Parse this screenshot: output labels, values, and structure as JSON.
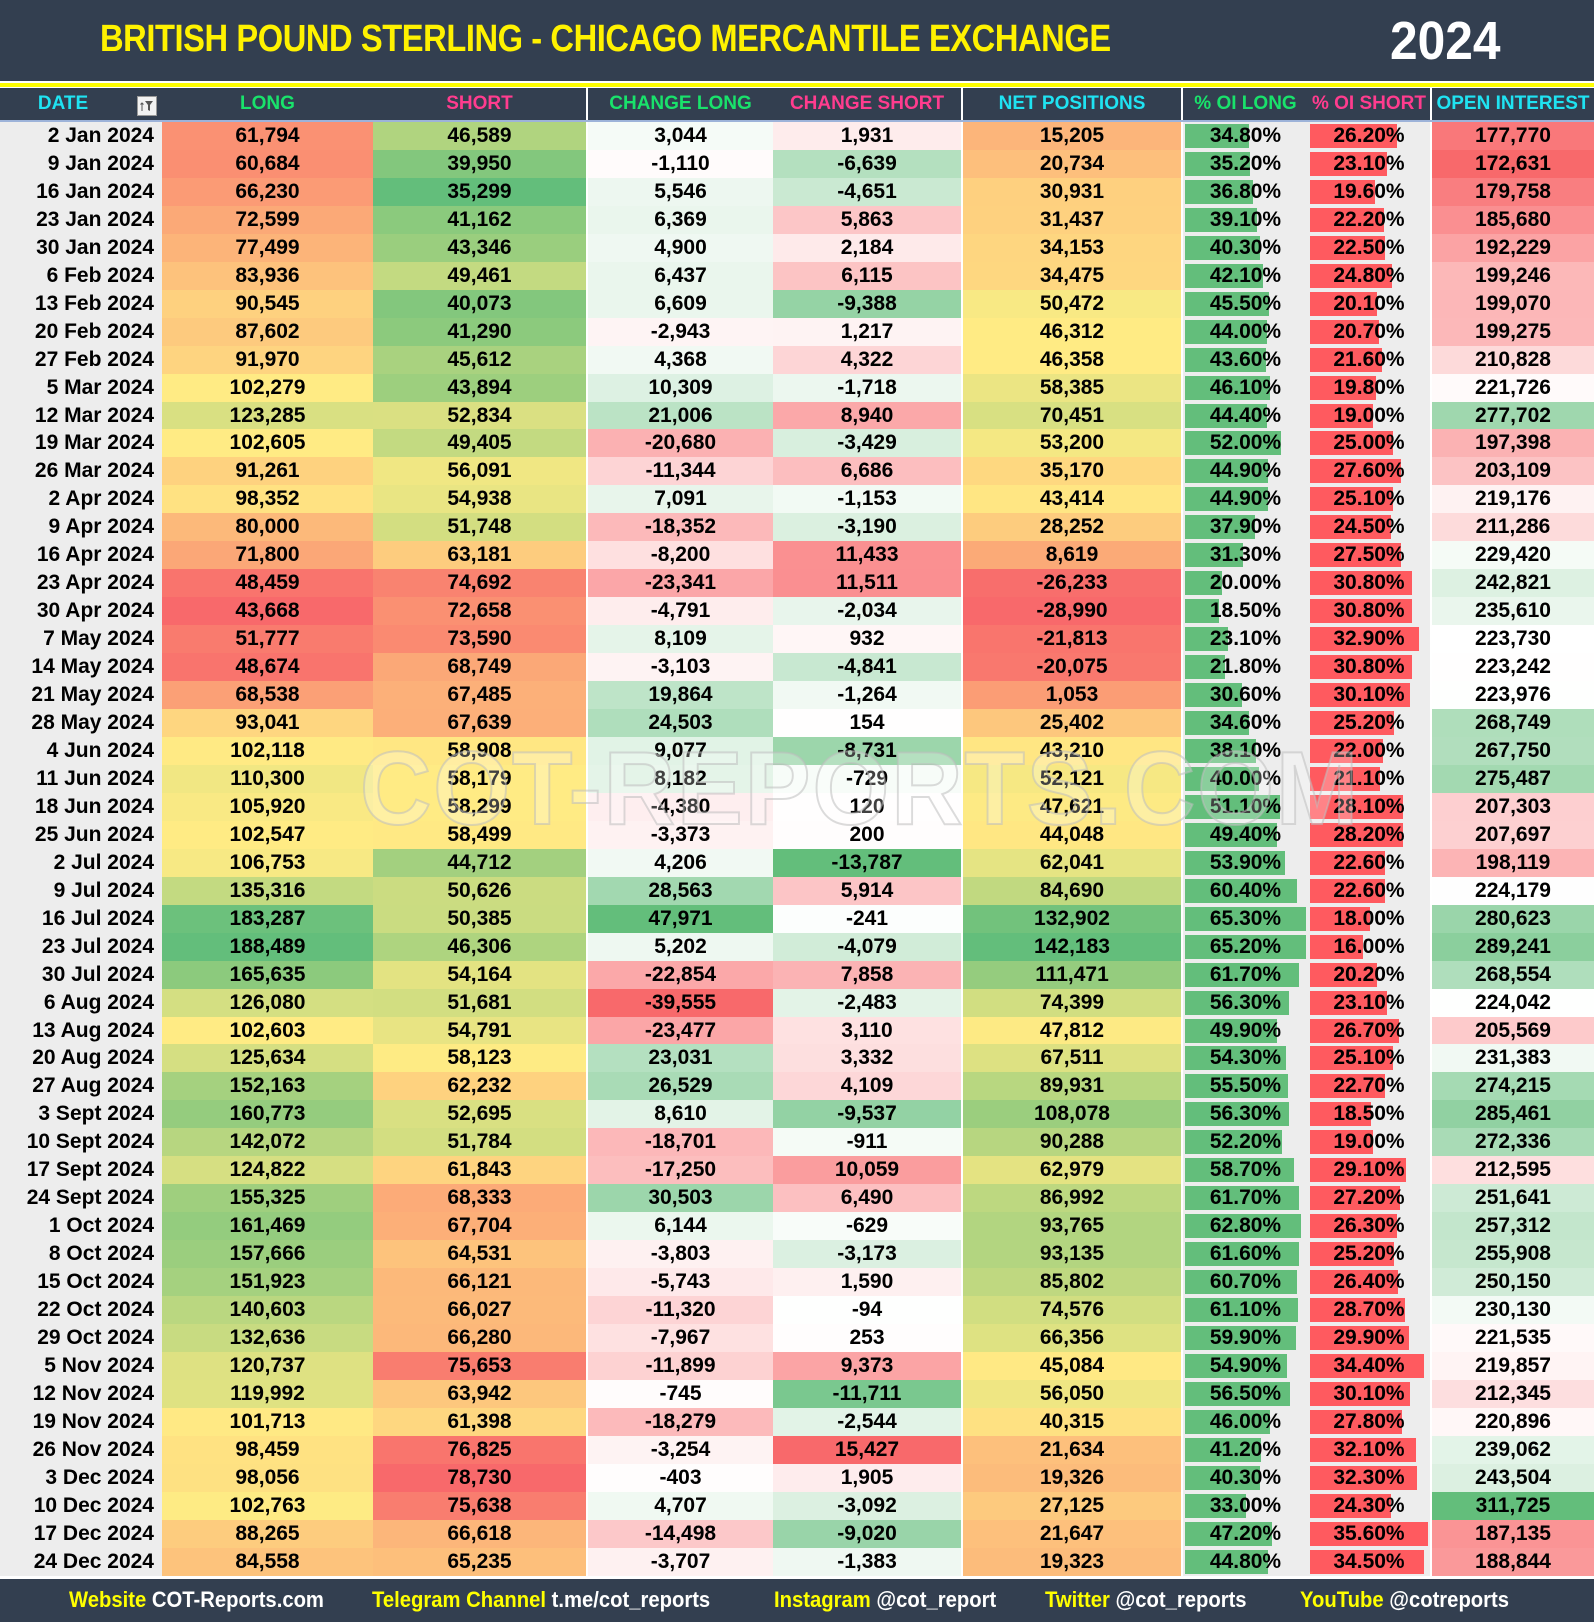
{
  "title": "BRITISH POUND STERLING - CHICAGO MERCANTILE EXCHANGE",
  "year": "2024",
  "watermark": "COT-REPORTS.COM",
  "colors": {
    "bg_dark": "#333F50",
    "title": "#FFF200",
    "red": "#F8696B",
    "yellow": "#FFEB84",
    "green": "#63BE7B",
    "white": "#FFFFFF",
    "bar_long": "#63BE7B",
    "bar_short": "#FF5A5F",
    "hdr_cyan": "#1FE3F2",
    "hdr_green": "#19E26B",
    "hdr_pink": "#FF3C8E"
  },
  "icons": {
    "date_filter": "filter-sort-icon"
  },
  "columns": [
    {
      "label": "DATE",
      "color": "#1FE3F2"
    },
    {
      "label": "LONG",
      "color": "#19E26B"
    },
    {
      "label": "SHORT",
      "color": "#FF3C8E"
    },
    {
      "label": "CHANGE LONG",
      "color": "#19E26B"
    },
    {
      "label": "CHANGE SHORT",
      "color": "#FF3C8E"
    },
    {
      "label": "NET POSITIONS",
      "color": "#1FE3F2"
    },
    {
      "label": "% OI LONG",
      "color": "#19E26B"
    },
    {
      "label": "% OI SHORT",
      "color": "#FF3C8E"
    },
    {
      "label": "OPEN INTEREST",
      "color": "#1FE3F2"
    }
  ],
  "rows": [
    [
      "2 Jan 2024",
      "61,794",
      "46,589",
      "3,044",
      "1,931",
      "15,205",
      "34.80%",
      "26.20%",
      "177,770"
    ],
    [
      "9 Jan 2024",
      "60,684",
      "39,950",
      "-1,110",
      "-6,639",
      "20,734",
      "35.20%",
      "23.10%",
      "172,631"
    ],
    [
      "16 Jan 2024",
      "66,230",
      "35,299",
      "5,546",
      "-4,651",
      "30,931",
      "36.80%",
      "19.60%",
      "179,758"
    ],
    [
      "23 Jan 2024",
      "72,599",
      "41,162",
      "6,369",
      "5,863",
      "31,437",
      "39.10%",
      "22.20%",
      "185,680"
    ],
    [
      "30 Jan 2024",
      "77,499",
      "43,346",
      "4,900",
      "2,184",
      "34,153",
      "40.30%",
      "22.50%",
      "192,229"
    ],
    [
      "6 Feb 2024",
      "83,936",
      "49,461",
      "6,437",
      "6,115",
      "34,475",
      "42.10%",
      "24.80%",
      "199,246"
    ],
    [
      "13 Feb 2024",
      "90,545",
      "40,073",
      "6,609",
      "-9,388",
      "50,472",
      "45.50%",
      "20.10%",
      "199,070"
    ],
    [
      "20 Feb 2024",
      "87,602",
      "41,290",
      "-2,943",
      "1,217",
      "46,312",
      "44.00%",
      "20.70%",
      "199,275"
    ],
    [
      "27 Feb 2024",
      "91,970",
      "45,612",
      "4,368",
      "4,322",
      "46,358",
      "43.60%",
      "21.60%",
      "210,828"
    ],
    [
      "5 Mar 2024",
      "102,279",
      "43,894",
      "10,309",
      "-1,718",
      "58,385",
      "46.10%",
      "19.80%",
      "221,726"
    ],
    [
      "12 Mar 2024",
      "123,285",
      "52,834",
      "21,006",
      "8,940",
      "70,451",
      "44.40%",
      "19.00%",
      "277,702"
    ],
    [
      "19 Mar 2024",
      "102,605",
      "49,405",
      "-20,680",
      "-3,429",
      "53,200",
      "52.00%",
      "25.00%",
      "197,398"
    ],
    [
      "26 Mar 2024",
      "91,261",
      "56,091",
      "-11,344",
      "6,686",
      "35,170",
      "44.90%",
      "27.60%",
      "203,109"
    ],
    [
      "2 Apr 2024",
      "98,352",
      "54,938",
      "7,091",
      "-1,153",
      "43,414",
      "44.90%",
      "25.10%",
      "219,176"
    ],
    [
      "9 Apr 2024",
      "80,000",
      "51,748",
      "-18,352",
      "-3,190",
      "28,252",
      "37.90%",
      "24.50%",
      "211,286"
    ],
    [
      "16 Apr 2024",
      "71,800",
      "63,181",
      "-8,200",
      "11,433",
      "8,619",
      "31.30%",
      "27.50%",
      "229,420"
    ],
    [
      "23 Apr 2024",
      "48,459",
      "74,692",
      "-23,341",
      "11,511",
      "-26,233",
      "20.00%",
      "30.80%",
      "242,821"
    ],
    [
      "30 Apr 2024",
      "43,668",
      "72,658",
      "-4,791",
      "-2,034",
      "-28,990",
      "18.50%",
      "30.80%",
      "235,610"
    ],
    [
      "7 May 2024",
      "51,777",
      "73,590",
      "8,109",
      "932",
      "-21,813",
      "23.10%",
      "32.90%",
      "223,730"
    ],
    [
      "14 May 2024",
      "48,674",
      "68,749",
      "-3,103",
      "-4,841",
      "-20,075",
      "21.80%",
      "30.80%",
      "223,242"
    ],
    [
      "21 May 2024",
      "68,538",
      "67,485",
      "19,864",
      "-1,264",
      "1,053",
      "30.60%",
      "30.10%",
      "223,976"
    ],
    [
      "28 May 2024",
      "93,041",
      "67,639",
      "24,503",
      "154",
      "25,402",
      "34.60%",
      "25.20%",
      "268,749"
    ],
    [
      "4 Jun 2024",
      "102,118",
      "58,908",
      "9,077",
      "-8,731",
      "43,210",
      "38.10%",
      "22.00%",
      "267,750"
    ],
    [
      "11 Jun 2024",
      "110,300",
      "58,179",
      "8,182",
      "-729",
      "52,121",
      "40.00%",
      "21.10%",
      "275,487"
    ],
    [
      "18 Jun 2024",
      "105,920",
      "58,299",
      "-4,380",
      "120",
      "47,621",
      "51.10%",
      "28.10%",
      "207,303"
    ],
    [
      "25 Jun 2024",
      "102,547",
      "58,499",
      "-3,373",
      "200",
      "44,048",
      "49.40%",
      "28.20%",
      "207,697"
    ],
    [
      "2 Jul 2024",
      "106,753",
      "44,712",
      "4,206",
      "-13,787",
      "62,041",
      "53.90%",
      "22.60%",
      "198,119"
    ],
    [
      "9 Jul 2024",
      "135,316",
      "50,626",
      "28,563",
      "5,914",
      "84,690",
      "60.40%",
      "22.60%",
      "224,179"
    ],
    [
      "16 Jul 2024",
      "183,287",
      "50,385",
      "47,971",
      "-241",
      "132,902",
      "65.30%",
      "18.00%",
      "280,623"
    ],
    [
      "23 Jul 2024",
      "188,489",
      "46,306",
      "5,202",
      "-4,079",
      "142,183",
      "65.20%",
      "16.00%",
      "289,241"
    ],
    [
      "30 Jul 2024",
      "165,635",
      "54,164",
      "-22,854",
      "7,858",
      "111,471",
      "61.70%",
      "20.20%",
      "268,554"
    ],
    [
      "6 Aug 2024",
      "126,080",
      "51,681",
      "-39,555",
      "-2,483",
      "74,399",
      "56.30%",
      "23.10%",
      "224,042"
    ],
    [
      "13 Aug 2024",
      "102,603",
      "54,791",
      "-23,477",
      "3,110",
      "47,812",
      "49.90%",
      "26.70%",
      "205,569"
    ],
    [
      "20 Aug 2024",
      "125,634",
      "58,123",
      "23,031",
      "3,332",
      "67,511",
      "54.30%",
      "25.10%",
      "231,383"
    ],
    [
      "27 Aug 2024",
      "152,163",
      "62,232",
      "26,529",
      "4,109",
      "89,931",
      "55.50%",
      "22.70%",
      "274,215"
    ],
    [
      "3 Sept 2024",
      "160,773",
      "52,695",
      "8,610",
      "-9,537",
      "108,078",
      "56.30%",
      "18.50%",
      "285,461"
    ],
    [
      "10 Sept 2024",
      "142,072",
      "51,784",
      "-18,701",
      "-911",
      "90,288",
      "52.20%",
      "19.00%",
      "272,336"
    ],
    [
      "17 Sept 2024",
      "124,822",
      "61,843",
      "-17,250",
      "10,059",
      "62,979",
      "58.70%",
      "29.10%",
      "212,595"
    ],
    [
      "24 Sept 2024",
      "155,325",
      "68,333",
      "30,503",
      "6,490",
      "86,992",
      "61.70%",
      "27.20%",
      "251,641"
    ],
    [
      "1 Oct 2024",
      "161,469",
      "67,704",
      "6,144",
      "-629",
      "93,765",
      "62.80%",
      "26.30%",
      "257,312"
    ],
    [
      "8 Oct 2024",
      "157,666",
      "64,531",
      "-3,803",
      "-3,173",
      "93,135",
      "61.60%",
      "25.20%",
      "255,908"
    ],
    [
      "15 Oct 2024",
      "151,923",
      "66,121",
      "-5,743",
      "1,590",
      "85,802",
      "60.70%",
      "26.40%",
      "250,150"
    ],
    [
      "22 Oct 2024",
      "140,603",
      "66,027",
      "-11,320",
      "-94",
      "74,576",
      "61.10%",
      "28.70%",
      "230,130"
    ],
    [
      "29 Oct 2024",
      "132,636",
      "66,280",
      "-7,967",
      "253",
      "66,356",
      "59.90%",
      "29.90%",
      "221,535"
    ],
    [
      "5 Nov 2024",
      "120,737",
      "75,653",
      "-11,899",
      "9,373",
      "45,084",
      "54.90%",
      "34.40%",
      "219,857"
    ],
    [
      "12 Nov 2024",
      "119,992",
      "63,942",
      "-745",
      "-11,711",
      "56,050",
      "56.50%",
      "30.10%",
      "212,345"
    ],
    [
      "19 Nov 2024",
      "101,713",
      "61,398",
      "-18,279",
      "-2,544",
      "40,315",
      "46.00%",
      "27.80%",
      "220,896"
    ],
    [
      "26 Nov 2024",
      "98,459",
      "76,825",
      "-3,254",
      "15,427",
      "21,634",
      "41.20%",
      "32.10%",
      "239,062"
    ],
    [
      "3 Dec 2024",
      "98,056",
      "78,730",
      "-403",
      "1,905",
      "19,326",
      "40.30%",
      "32.30%",
      "243,504"
    ],
    [
      "10 Dec 2024",
      "102,763",
      "75,638",
      "4,707",
      "-3,092",
      "27,125",
      "33.00%",
      "24.30%",
      "311,725"
    ],
    [
      "17 Dec 2024",
      "88,265",
      "66,618",
      "-14,498",
      "-9,020",
      "21,647",
      "47.20%",
      "35.60%",
      "187,135"
    ],
    [
      "24 Dec 2024",
      "84,558",
      "65,235",
      "-3,707",
      "-1,383",
      "19,323",
      "44.80%",
      "34.50%",
      "188,844"
    ]
  ],
  "footer": [
    {
      "label": "Website",
      "value": "COT-Reports.com"
    },
    {
      "label": "Telegram Channel",
      "value": "t.me/cot_reports"
    },
    {
      "label": "Instagram",
      "value": "@cot_report"
    },
    {
      "label": "Twitter",
      "value": "@cot_reports"
    },
    {
      "label": "YouTube",
      "value": "@cotreports"
    }
  ]
}
